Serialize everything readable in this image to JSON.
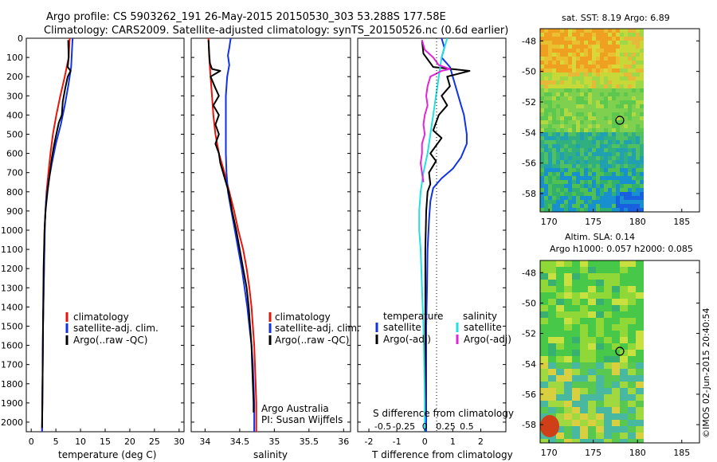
{
  "header": {
    "line1": "Argo profile: CS 5903262_191 26-May-2015 20150530_303 53.288S 177.58E",
    "line2": "Climatology: CARS2009. Satellite-adjusted climatology: synTS_20150526.nc (0.6d earlier)"
  },
  "credit": "©IMOS 02-Jun-2015 20:40:54",
  "colors": {
    "climatology": "#e8140a",
    "satellite": "#1232e6",
    "argo": "#000000",
    "sal_satellite": "#22e0e0",
    "sal_argo": "#e026d6"
  },
  "chart_data": [
    {
      "type": "line",
      "xlabel": "temperature (deg C)",
      "xlim": [
        -1,
        31
      ],
      "xticks": [
        "0",
        "5",
        "10",
        "15",
        "20",
        "25",
        "30"
      ],
      "ylim": [
        0,
        2050
      ],
      "yticks": [
        "0",
        "100",
        "200",
        "300",
        "400",
        "500",
        "600",
        "700",
        "800",
        "900",
        "1000",
        "1100",
        "1200",
        "1300",
        "1400",
        "1500",
        "1600",
        "1700",
        "1800",
        "1900",
        "2000"
      ],
      "legend": [
        "climatology",
        "satellite-adj. clim.",
        "Argo(..raw -QC)"
      ],
      "series": [
        {
          "name": "climatology",
          "color": "#e8140a",
          "points": [
            [
              7.8,
              0
            ],
            [
              7.6,
              100
            ],
            [
              6.8,
              200
            ],
            [
              5.9,
              300
            ],
            [
              5.1,
              400
            ],
            [
              4.4,
              500
            ],
            [
              3.9,
              600
            ],
            [
              3.5,
              700
            ],
            [
              3.1,
              800
            ],
            [
              2.9,
              900
            ],
            [
              2.7,
              1000
            ],
            [
              2.6,
              1200
            ],
            [
              2.4,
              1500
            ],
            [
              2.3,
              1800
            ],
            [
              2.2,
              2050
            ]
          ]
        },
        {
          "name": "satellite-adj. clim.",
          "color": "#1232e6",
          "points": [
            [
              8.4,
              0
            ],
            [
              8.3,
              50
            ],
            [
              8.1,
              150
            ],
            [
              7.5,
              250
            ],
            [
              6.8,
              350
            ],
            [
              6.0,
              450
            ],
            [
              5.0,
              550
            ],
            [
              4.2,
              650
            ],
            [
              3.5,
              750
            ],
            [
              3.0,
              850
            ],
            [
              2.8,
              950
            ],
            [
              2.6,
              1200
            ],
            [
              2.4,
              1500
            ],
            [
              2.3,
              1800
            ],
            [
              2.2,
              2050
            ]
          ]
        },
        {
          "name": "Argo(..raw -QC)",
          "color": "#000000",
          "points": [
            [
              7.5,
              10
            ],
            [
              7.6,
              100
            ],
            [
              7.4,
              150
            ],
            [
              8.0,
              170
            ],
            [
              7.4,
              200
            ],
            [
              6.9,
              260
            ],
            [
              6.4,
              330
            ],
            [
              6.2,
              400
            ],
            [
              5.6,
              440
            ],
            [
              5.1,
              500
            ],
            [
              4.6,
              560
            ],
            [
              4.2,
              620
            ],
            [
              3.8,
              700
            ],
            [
              3.3,
              800
            ],
            [
              2.9,
              900
            ],
            [
              2.7,
              1000
            ],
            [
              2.5,
              1200
            ],
            [
              2.4,
              1500
            ],
            [
              2.3,
              1800
            ],
            [
              2.2,
              2030
            ]
          ]
        }
      ]
    },
    {
      "type": "line",
      "xlabel": "salinity",
      "xlim": [
        33.8,
        36.1
      ],
      "xticks": [
        "34",
        "34.5",
        "35",
        "35.5",
        "36"
      ],
      "ylim": [
        0,
        2050
      ],
      "legend": [
        "climatology",
        "satellite-adj. clim.",
        "Argo(..raw -QC)"
      ],
      "annotations": [
        "Argo Australia",
        "PI: Susan Wijffels"
      ],
      "series": [
        {
          "name": "climatology",
          "color": "#e8140a",
          "points": [
            [
              34.05,
              0
            ],
            [
              34.06,
              100
            ],
            [
              34.08,
              200
            ],
            [
              34.1,
              300
            ],
            [
              34.12,
              400
            ],
            [
              34.15,
              500
            ],
            [
              34.2,
              600
            ],
            [
              34.28,
              700
            ],
            [
              34.35,
              800
            ],
            [
              34.42,
              900
            ],
            [
              34.48,
              1000
            ],
            [
              34.55,
              1100
            ],
            [
              34.6,
              1200
            ],
            [
              34.64,
              1300
            ],
            [
              34.67,
              1400
            ],
            [
              34.69,
              1500
            ],
            [
              34.71,
              1600
            ],
            [
              34.72,
              1700
            ],
            [
              34.73,
              1800
            ],
            [
              34.74,
              1900
            ],
            [
              34.74,
              2050
            ]
          ]
        },
        {
          "name": "satellite-adj. clim.",
          "color": "#1232e6",
          "points": [
            [
              34.37,
              0
            ],
            [
              34.35,
              50
            ],
            [
              34.33,
              90
            ],
            [
              34.35,
              140
            ],
            [
              34.32,
              200
            ],
            [
              34.3,
              300
            ],
            [
              34.3,
              400
            ],
            [
              34.3,
              500
            ],
            [
              34.3,
              600
            ],
            [
              34.31,
              700
            ],
            [
              34.33,
              800
            ],
            [
              34.38,
              900
            ],
            [
              34.43,
              1000
            ],
            [
              34.48,
              1100
            ],
            [
              34.53,
              1200
            ],
            [
              34.57,
              1300
            ],
            [
              34.61,
              1400
            ],
            [
              34.64,
              1500
            ],
            [
              34.67,
              1600
            ],
            [
              34.69,
              1700
            ],
            [
              34.7,
              1800
            ],
            [
              34.71,
              1900
            ],
            [
              34.71,
              2050
            ]
          ]
        },
        {
          "name": "Argo(..raw -QC)",
          "color": "#000000",
          "points": [
            [
              34.05,
              10
            ],
            [
              34.06,
              80
            ],
            [
              34.07,
              130
            ],
            [
              34.1,
              160
            ],
            [
              34.22,
              170
            ],
            [
              34.08,
              200
            ],
            [
              34.15,
              260
            ],
            [
              34.2,
              300
            ],
            [
              34.12,
              350
            ],
            [
              34.2,
              400
            ],
            [
              34.15,
              450
            ],
            [
              34.2,
              500
            ],
            [
              34.15,
              550
            ],
            [
              34.2,
              600
            ],
            [
              34.22,
              650
            ],
            [
              34.26,
              700
            ],
            [
              34.3,
              750
            ],
            [
              34.34,
              800
            ],
            [
              34.39,
              900
            ],
            [
              34.45,
              1000
            ],
            [
              34.5,
              1100
            ],
            [
              34.55,
              1200
            ],
            [
              34.6,
              1300
            ],
            [
              34.63,
              1400
            ],
            [
              34.65,
              1500
            ],
            [
              34.67,
              1600
            ],
            [
              34.68,
              1700
            ],
            [
              34.69,
              1800
            ],
            [
              34.7,
              1900
            ],
            [
              34.7,
              1950
            ]
          ]
        }
      ]
    },
    {
      "type": "line",
      "xlabel": "T difference from climatology",
      "xlabel_top": "S difference from climatology",
      "xlim": [
        -2.4,
        2.9
      ],
      "xticks": [
        "-2",
        "-1",
        "0",
        "1",
        "2"
      ],
      "xticks_top": [
        "-0.5",
        "-0.25",
        "0",
        "0.25",
        "0.5"
      ],
      "ylim": [
        0,
        2050
      ],
      "legend_temperature": {
        "heading": "temperature",
        "items": [
          "satellite",
          "Argo(-adj)"
        ]
      },
      "legend_salinity": {
        "heading": "salinity",
        "items": [
          "satellite",
          "Argo(-adj)"
        ]
      },
      "series": [
        {
          "name": "satellite",
          "color": "#1232e6",
          "points": [
            [
              0.6,
              0
            ],
            [
              0.7,
              50
            ],
            [
              0.6,
              100
            ],
            [
              0.9,
              150
            ],
            [
              1.0,
              200
            ],
            [
              1.1,
              250
            ],
            [
              1.2,
              300
            ],
            [
              1.3,
              350
            ],
            [
              1.4,
              400
            ],
            [
              1.5,
              500
            ],
            [
              1.5,
              550
            ],
            [
              1.3,
              620
            ],
            [
              1.0,
              680
            ],
            [
              0.6,
              730
            ],
            [
              0.3,
              780
            ],
            [
              0.2,
              850
            ],
            [
              0.15,
              950
            ],
            [
              0.1,
              1100
            ],
            [
              0.08,
              1300
            ],
            [
              0.05,
              1500
            ],
            [
              0.05,
              1700
            ],
            [
              0.05,
              1900
            ],
            [
              0.05,
              2050
            ]
          ]
        },
        {
          "name": "Argo(-adj)",
          "color": "#000000",
          "points": [
            [
              -0.1,
              10
            ],
            [
              -0.05,
              80
            ],
            [
              0.3,
              150
            ],
            [
              1.6,
              170
            ],
            [
              0.8,
              200
            ],
            [
              0.9,
              250
            ],
            [
              0.6,
              300
            ],
            [
              0.8,
              350
            ],
            [
              0.5,
              400
            ],
            [
              0.3,
              480
            ],
            [
              0.6,
              520
            ],
            [
              0.2,
              600
            ],
            [
              0.4,
              640
            ],
            [
              0.15,
              700
            ],
            [
              0.2,
              760
            ],
            [
              0.1,
              800
            ],
            [
              0.05,
              900
            ],
            [
              0.02,
              1100
            ],
            [
              0.02,
              1400
            ],
            [
              0.02,
              1700
            ],
            [
              0.02,
              1950
            ]
          ]
        },
        {
          "name": "satellite",
          "color": "#22e0e0",
          "points": [
            [
              0.8,
              0
            ],
            [
              0.7,
              50
            ],
            [
              0.6,
              100
            ],
            [
              0.5,
              200
            ],
            [
              0.4,
              300
            ],
            [
              0.3,
              400
            ],
            [
              0.2,
              500
            ],
            [
              0.1,
              600
            ],
            [
              -0.05,
              700
            ],
            [
              -0.15,
              800
            ],
            [
              -0.2,
              900
            ],
            [
              -0.2,
              1000
            ],
            [
              -0.15,
              1100
            ],
            [
              -0.1,
              1300
            ],
            [
              -0.05,
              1500
            ],
            [
              -0.02,
              1700
            ],
            [
              0.0,
              1900
            ],
            [
              0.0,
              2050
            ]
          ]
        },
        {
          "name": "Argo(-adj)",
          "color": "#e026d6",
          "points": [
            [
              -0.1,
              10
            ],
            [
              0.0,
              60
            ],
            [
              0.3,
              100
            ],
            [
              0.5,
              140
            ],
            [
              0.9,
              160
            ],
            [
              0.6,
              170
            ],
            [
              0.2,
              200
            ],
            [
              0.1,
              250
            ],
            [
              0.05,
              300
            ],
            [
              0.1,
              350
            ],
            [
              0.0,
              400
            ],
            [
              -0.05,
              450
            ],
            [
              0.0,
              500
            ],
            [
              -0.1,
              550
            ],
            [
              -0.1,
              600
            ],
            [
              -0.15,
              650
            ],
            [
              -0.1,
              700
            ],
            [
              -0.05,
              750
            ]
          ]
        }
      ]
    }
  ],
  "maps": [
    {
      "title": "sat. SST: 8.19 Argo: 6.89",
      "xticks": [
        "170",
        "175",
        "180",
        "185"
      ],
      "yticks": [
        "-48",
        "-50",
        "-52",
        "-54",
        "-56",
        "-58"
      ]
    },
    {
      "title": "Altim. SLA: 0.14",
      "subtitle": "Argo h1000: 0.057 h2000: 0.085",
      "xticks": [
        "170",
        "175",
        "180",
        "185"
      ],
      "yticks": [
        "-48",
        "-50",
        "-52",
        "-54",
        "-56",
        "-58"
      ]
    }
  ],
  "map_marker": {
    "lon": 177.58,
    "lat": -53.288
  }
}
